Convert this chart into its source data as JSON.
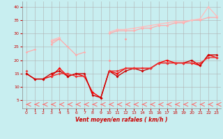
{
  "xlabel": "Vent moyen/en rafales ( km/h )",
  "background_color": "#c8eef0",
  "grid_color": "#b0b0b0",
  "x": [
    0,
    1,
    2,
    3,
    4,
    5,
    6,
    7,
    8,
    9,
    10,
    11,
    12,
    13,
    14,
    15,
    16,
    17,
    18,
    19,
    20,
    21,
    22,
    23
  ],
  "series": [
    {
      "color": "#ffaaaa",
      "lw": 0.9,
      "marker": "D",
      "ms": 1.8,
      "y": [
        null,
        null,
        null,
        27,
        28,
        null,
        null,
        null,
        null,
        null,
        30,
        31,
        31,
        31,
        32,
        32,
        33,
        33,
        34,
        34,
        35,
        35,
        36,
        36
      ]
    },
    {
      "color": "#ffbbbb",
      "lw": 0.9,
      "marker": "D",
      "ms": 1.8,
      "y": [
        null,
        null,
        null,
        27.5,
        28.5,
        null,
        null,
        null,
        null,
        null,
        30.5,
        31.5,
        31.5,
        32,
        32.5,
        33,
        33.5,
        34,
        34.5,
        34.5,
        35,
        35.5,
        40,
        36.5
      ]
    },
    {
      "color": "#ffaaaa",
      "lw": 0.9,
      "marker": "D",
      "ms": 1.8,
      "y": [
        23,
        24,
        null,
        26,
        28,
        25,
        22,
        23,
        null,
        null,
        20,
        null,
        null,
        null,
        null,
        null,
        null,
        null,
        null,
        null,
        null,
        null,
        null,
        null
      ]
    },
    {
      "color": "#ff9999",
      "lw": 0.9,
      "marker": "D",
      "ms": 1.8,
      "y": [
        null,
        null,
        null,
        null,
        null,
        null,
        null,
        null,
        null,
        null,
        20,
        null,
        28,
        null,
        null,
        null,
        null,
        null,
        null,
        null,
        null,
        null,
        null,
        null
      ]
    },
    {
      "color": "#ff0000",
      "lw": 1.0,
      "marker": "D",
      "ms": 2.0,
      "y": [
        15,
        13,
        13,
        14,
        17,
        14,
        15,
        14,
        8,
        6,
        16,
        15,
        17,
        17,
        17,
        17,
        19,
        20,
        19,
        19,
        19,
        18,
        22,
        21
      ]
    },
    {
      "color": "#cc0000",
      "lw": 1.0,
      "marker": "D",
      "ms": 2.0,
      "y": [
        15,
        13,
        13,
        15,
        16,
        14,
        15,
        15,
        7,
        6,
        16,
        14,
        16,
        17,
        16,
        17,
        19,
        19,
        19,
        19,
        20,
        18,
        22,
        22
      ]
    },
    {
      "color": "#ee3333",
      "lw": 1.0,
      "marker": "D",
      "ms": 2.0,
      "y": [
        16,
        null,
        null,
        14,
        15,
        15,
        14,
        14,
        null,
        null,
        16,
        16,
        17,
        17,
        17,
        17,
        19,
        19,
        19,
        19,
        19,
        19,
        21,
        21
      ]
    }
  ],
  "arrow_color": "#ff6666",
  "xlim": [
    -0.5,
    23.5
  ],
  "ylim": [
    2,
    42
  ],
  "yticks": [
    5,
    10,
    15,
    20,
    25,
    30,
    35,
    40
  ],
  "xticks": [
    0,
    1,
    2,
    3,
    4,
    5,
    6,
    7,
    8,
    9,
    10,
    11,
    12,
    13,
    14,
    15,
    16,
    17,
    18,
    19,
    20,
    21,
    22,
    23
  ],
  "figsize": [
    3.2,
    2.0
  ],
  "dpi": 100
}
